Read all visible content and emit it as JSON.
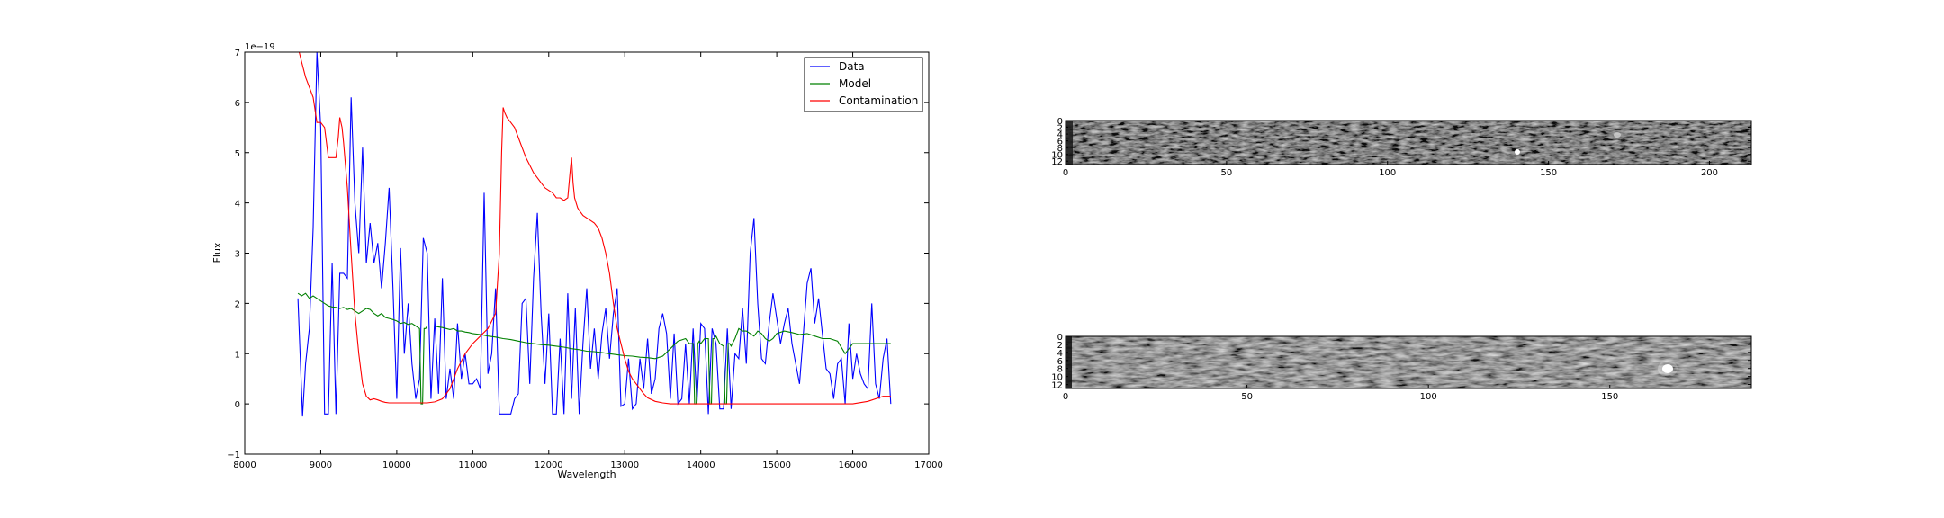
{
  "chart_data": [
    {
      "type": "line",
      "xlabel": "Wavelength",
      "ylabel": "Flux",
      "offset_text": "1e−19",
      "xlim": [
        8000,
        17000
      ],
      "ylim": [
        -1,
        7
      ],
      "xticks": [
        8000,
        9000,
        10000,
        11000,
        12000,
        13000,
        14000,
        15000,
        16000,
        17000
      ],
      "yticks": [
        -1,
        0,
        1,
        2,
        3,
        4,
        5,
        6,
        7
      ],
      "ytick_labels": [
        "−1",
        "0",
        "1",
        "2",
        "3",
        "4",
        "5",
        "6",
        "7"
      ],
      "legend_position": "top-right",
      "series": [
        {
          "name": "Data",
          "color": "#0000ff",
          "x": [
            8700,
            8760,
            8800,
            8850,
            8900,
            8950,
            9000,
            9050,
            9100,
            9150,
            9200,
            9250,
            9300,
            9350,
            9400,
            9450,
            9500,
            9550,
            9600,
            9650,
            9700,
            9750,
            9800,
            9850,
            9900,
            9950,
            10000,
            10050,
            10100,
            10150,
            10200,
            10250,
            10300,
            10350,
            10400,
            10450,
            10500,
            10550,
            10600,
            10650,
            10700,
            10750,
            10800,
            10850,
            10900,
            10950,
            11000,
            11050,
            11100,
            11150,
            11200,
            11250,
            11300,
            11350,
            11400,
            11450,
            11500,
            11550,
            11600,
            11650,
            11700,
            11750,
            11800,
            11850,
            11900,
            11950,
            12000,
            12050,
            12100,
            12150,
            12200,
            12250,
            12300,
            12350,
            12400,
            12450,
            12500,
            12550,
            12600,
            12650,
            12700,
            12750,
            12800,
            12850,
            12900,
            12950,
            13000,
            13050,
            13100,
            13150,
            13200,
            13250,
            13300,
            13350,
            13400,
            13450,
            13500,
            13550,
            13600,
            13650,
            13700,
            13750,
            13800,
            13850,
            13900,
            13950,
            14000,
            14050,
            14100,
            14150,
            14200,
            14250,
            14300,
            14350,
            14400,
            14450,
            14500,
            14550,
            14600,
            14650,
            14700,
            14750,
            14800,
            14850,
            14900,
            14950,
            15000,
            15050,
            15100,
            15150,
            15200,
            15250,
            15300,
            15350,
            15400,
            15450,
            15500,
            15550,
            15600,
            15650,
            15700,
            15750,
            15800,
            15850,
            15900,
            15950,
            16000,
            16050,
            16100,
            16150,
            16200,
            16250,
            16300,
            16350,
            16400,
            16450,
            16500
          ],
          "y": [
            2.1,
            -0.25,
            0.8,
            1.5,
            3.5,
            7.0,
            5.5,
            -0.2,
            -0.2,
            2.8,
            -0.2,
            2.6,
            2.6,
            2.5,
            6.1,
            4.0,
            3.0,
            5.1,
            2.8,
            3.6,
            2.8,
            3.2,
            2.3,
            3.2,
            4.3,
            2.3,
            0.1,
            3.1,
            1.0,
            2.0,
            0.8,
            0.1,
            0.5,
            3.3,
            3.0,
            0.1,
            1.7,
            0.2,
            2.5,
            0.1,
            0.7,
            0.1,
            1.6,
            0.5,
            1.0,
            0.4,
            0.4,
            0.5,
            0.3,
            4.2,
            0.6,
            1.0,
            2.3,
            -0.2,
            -0.2,
            -0.2,
            -0.2,
            0.1,
            0.2,
            2.0,
            2.1,
            0.4,
            2.5,
            3.8,
            1.8,
            0.4,
            1.8,
            -0.2,
            -0.2,
            1.3,
            -0.2,
            2.2,
            0.1,
            1.9,
            -0.2,
            1.2,
            2.3,
            0.7,
            1.5,
            0.5,
            1.4,
            1.9,
            0.9,
            1.8,
            2.3,
            -0.05,
            0.0,
            0.9,
            -0.1,
            0.0,
            0.9,
            0.3,
            1.3,
            0.2,
            0.5,
            1.5,
            1.8,
            1.4,
            0.1,
            1.4,
            0.0,
            0.1,
            1.2,
            0.0,
            1.5,
            0.0,
            1.6,
            1.5,
            -0.2,
            1.5,
            1.2,
            -0.1,
            -0.1,
            1.5,
            -0.1,
            1.0,
            0.9,
            1.9,
            0.8,
            3.0,
            3.7,
            2.0,
            0.9,
            0.8,
            1.6,
            2.2,
            1.7,
            1.2,
            1.6,
            1.9,
            1.2,
            0.8,
            0.4,
            1.4,
            2.4,
            2.7,
            1.6,
            2.1,
            1.4,
            0.7,
            0.6,
            0.1,
            0.8,
            0.9,
            0.0,
            1.6,
            0.5,
            1.0,
            0.6,
            0.4,
            0.3,
            2.0,
            0.4,
            0.1,
            0.9,
            1.3,
            0.0
          ]
        },
        {
          "name": "Model",
          "color": "#008000",
          "x": [
            8700,
            8750,
            8800,
            8850,
            8900,
            8950,
            9000,
            9050,
            9100,
            9150,
            9200,
            9250,
            9300,
            9350,
            9400,
            9450,
            9500,
            9550,
            9600,
            9650,
            9700,
            9750,
            9800,
            9850,
            9900,
            9950,
            10000,
            10050,
            10100,
            10150,
            10200,
            10250,
            10300,
            10320,
            10340,
            10360,
            10380,
            10400,
            10450,
            10500,
            10550,
            10600,
            10650,
            10700,
            10750,
            10800,
            10850,
            10900,
            10950,
            11000,
            11100,
            11200,
            11300,
            11400,
            11500,
            11600,
            11700,
            11800,
            11900,
            12000,
            12100,
            12200,
            12300,
            12400,
            12500,
            12600,
            12700,
            12800,
            12900,
            13000,
            13100,
            13200,
            13300,
            13400,
            13500,
            13600,
            13700,
            13800,
            13850,
            13900,
            13920,
            13940,
            13960,
            13980,
            14000,
            14050,
            14100,
            14120,
            14140,
            14160,
            14180,
            14200,
            14250,
            14300,
            14320,
            14340,
            14360,
            14380,
            14400,
            14450,
            14500,
            14550,
            14600,
            14650,
            14700,
            14750,
            14800,
            14850,
            14900,
            14950,
            15000,
            15100,
            15200,
            15300,
            15400,
            15500,
            15600,
            15700,
            15800,
            15900,
            16000,
            16100,
            16200,
            16300,
            16400,
            16500
          ],
          "y": [
            2.2,
            2.15,
            2.2,
            2.1,
            2.15,
            2.1,
            2.05,
            2.0,
            1.95,
            1.93,
            1.92,
            1.9,
            1.92,
            1.88,
            1.9,
            1.85,
            1.8,
            1.85,
            1.9,
            1.88,
            1.8,
            1.75,
            1.8,
            1.72,
            1.7,
            1.68,
            1.65,
            1.6,
            1.62,
            1.58,
            1.6,
            1.55,
            1.5,
            0.0,
            0.0,
            1.5,
            1.5,
            1.55,
            1.55,
            1.55,
            1.53,
            1.52,
            1.5,
            1.48,
            1.5,
            1.45,
            1.45,
            1.43,
            1.42,
            1.4,
            1.38,
            1.35,
            1.33,
            1.3,
            1.28,
            1.25,
            1.22,
            1.2,
            1.18,
            1.17,
            1.15,
            1.13,
            1.1,
            1.08,
            1.05,
            1.04,
            1.02,
            1.0,
            0.98,
            0.96,
            0.95,
            0.93,
            0.92,
            0.9,
            0.95,
            1.1,
            1.25,
            1.3,
            1.2,
            1.2,
            0.0,
            0.0,
            1.2,
            1.25,
            1.2,
            1.3,
            1.3,
            0.0,
            0.0,
            1.3,
            1.3,
            1.35,
            1.2,
            1.15,
            0.0,
            0.0,
            1.2,
            1.2,
            1.15,
            1.3,
            1.5,
            1.45,
            1.45,
            1.4,
            1.35,
            1.45,
            1.4,
            1.3,
            1.25,
            1.3,
            1.4,
            1.45,
            1.42,
            1.38,
            1.4,
            1.35,
            1.3,
            1.3,
            1.25,
            1.0,
            1.2,
            1.2,
            1.2,
            1.2,
            1.2,
            1.2
          ]
        },
        {
          "name": "Contamination",
          "color": "#ff0000",
          "x": [
            8700,
            8750,
            8800,
            8850,
            8900,
            8950,
            9000,
            9050,
            9100,
            9150,
            9200,
            9230,
            9250,
            9280,
            9300,
            9350,
            9400,
            9450,
            9500,
            9550,
            9600,
            9650,
            9700,
            9750,
            9800,
            9850,
            9900,
            10000,
            10100,
            10200,
            10300,
            10400,
            10500,
            10600,
            10700,
            10800,
            10900,
            11000,
            11100,
            11200,
            11300,
            11350,
            11380,
            11400,
            11420,
            11450,
            11500,
            11550,
            11600,
            11650,
            11700,
            11750,
            11800,
            11850,
            11900,
            11950,
            12000,
            12050,
            12100,
            12150,
            12200,
            12250,
            12280,
            12300,
            12320,
            12340,
            12360,
            12380,
            12400,
            12450,
            12500,
            12550,
            12600,
            12650,
            12700,
            12750,
            12800,
            12850,
            12900,
            12950,
            13000,
            13050,
            13100,
            13150,
            13200,
            13250,
            13300,
            13400,
            13500,
            13600,
            13700,
            13800,
            14000,
            14500,
            15000,
            15500,
            16000,
            16200,
            16400,
            16500
          ],
          "y": [
            7.1,
            6.8,
            6.5,
            6.3,
            6.1,
            5.6,
            5.6,
            5.5,
            4.9,
            4.9,
            4.9,
            5.3,
            5.7,
            5.5,
            5.2,
            4.3,
            3.0,
            1.8,
            1.0,
            0.4,
            0.15,
            0.08,
            0.1,
            0.08,
            0.05,
            0.03,
            0.02,
            0.02,
            0.02,
            0.02,
            0.02,
            0.02,
            0.04,
            0.1,
            0.3,
            0.7,
            1.0,
            1.2,
            1.35,
            1.5,
            1.8,
            3.0,
            5.0,
            5.9,
            5.8,
            5.7,
            5.6,
            5.5,
            5.3,
            5.1,
            4.9,
            4.75,
            4.6,
            4.5,
            4.4,
            4.3,
            4.25,
            4.2,
            4.1,
            4.1,
            4.05,
            4.1,
            4.6,
            4.9,
            4.4,
            4.1,
            4.0,
            3.9,
            3.85,
            3.75,
            3.7,
            3.65,
            3.6,
            3.5,
            3.3,
            3.0,
            2.6,
            2.0,
            1.5,
            1.2,
            0.9,
            0.65,
            0.5,
            0.4,
            0.3,
            0.2,
            0.12,
            0.05,
            0.02,
            0.0,
            0.0,
            0.0,
            0.0,
            0.0,
            0.0,
            0.0,
            0.0,
            0.05,
            0.15,
            0.15
          ]
        }
      ]
    },
    {
      "type": "heatmap",
      "colormap": "gray",
      "xlim": [
        0,
        213
      ],
      "ylim": [
        13,
        0
      ],
      "xticks": [
        0,
        50,
        100,
        150,
        200
      ],
      "yticks": [
        0,
        2,
        4,
        6,
        8,
        10,
        12
      ]
    },
    {
      "type": "heatmap",
      "colormap": "gray",
      "xlim": [
        0,
        189
      ],
      "ylim": [
        13,
        0
      ],
      "xticks": [
        0,
        50,
        100,
        150
      ],
      "yticks": [
        0,
        2,
        4,
        6,
        8,
        10,
        12
      ]
    }
  ]
}
